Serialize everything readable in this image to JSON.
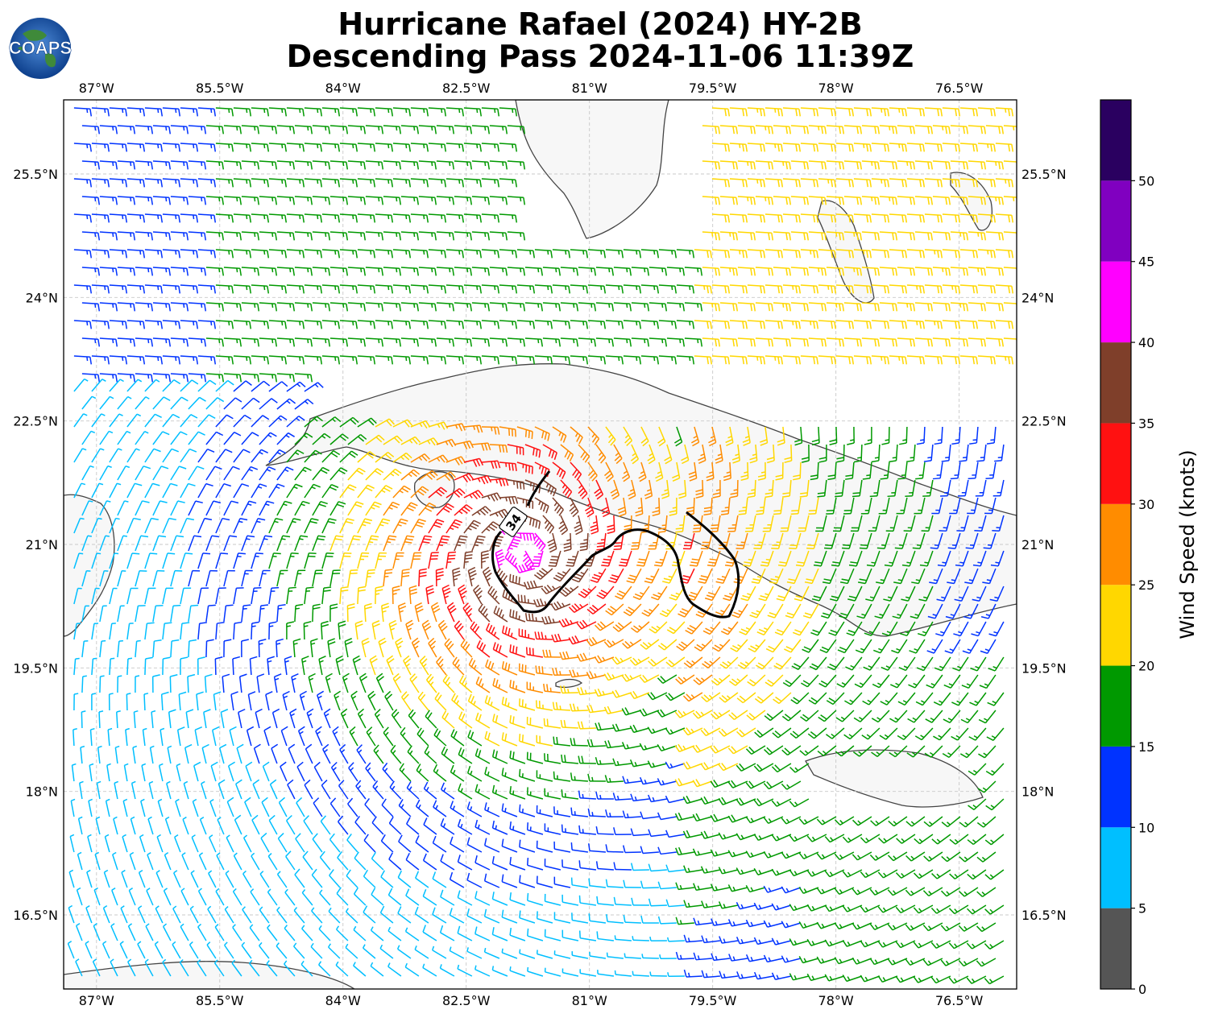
{
  "title": {
    "line1": "Hurricane Rafael (2024) HY-2B",
    "line2": "Descending Pass 2024-11-06 11:39Z"
  },
  "logo": {
    "text": "COAPS"
  },
  "map": {
    "lon_range": [
      -87.4,
      -75.8
    ],
    "lat_range": [
      15.6,
      26.4
    ],
    "lon_ticks": [
      "87°W",
      "85.5°W",
      "84°W",
      "82.5°W",
      "81°W",
      "79.5°W",
      "78°W",
      "76.5°W"
    ],
    "lat_ticks": [
      "25.5°N",
      "24°N",
      "22.5°N",
      "21°N",
      "19.5°N",
      "18°N",
      "16.5°N"
    ],
    "gridlines": true,
    "contour_label": "34",
    "storm_center": {
      "lon": -81.8,
      "lat": 20.9
    }
  },
  "colorbar": {
    "label": "Wind Speed (knots)",
    "ticks": [
      "0",
      "5",
      "10",
      "15",
      "20",
      "25",
      "30",
      "35",
      "40",
      "45",
      "50"
    ],
    "bins": [
      {
        "max": 5,
        "color": "#555555"
      },
      {
        "max": 10,
        "color": "#00bfff"
      },
      {
        "max": 15,
        "color": "#0033ff"
      },
      {
        "max": 20,
        "color": "#009900"
      },
      {
        "max": 25,
        "color": "#ffd700"
      },
      {
        "max": 30,
        "color": "#ff8c00"
      },
      {
        "max": 35,
        "color": "#ff1111"
      },
      {
        "max": 40,
        "color": "#7f3f2a"
      },
      {
        "max": 45,
        "color": "#ff00ff"
      },
      {
        "max": 50,
        "color": "#8000c0"
      },
      {
        "max": 55,
        "color": "#2a0060"
      }
    ]
  }
}
